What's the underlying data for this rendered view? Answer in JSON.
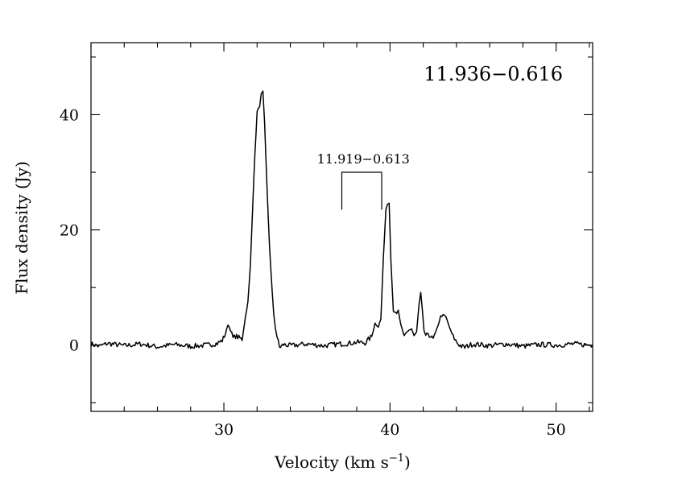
{
  "chart_data": {
    "type": "line",
    "title": "11.936−0.616",
    "xlabel": "Velocity (km s",
    "xlabel_sup": "−1",
    "xlabel_close": ")",
    "ylabel": "Flux density (Jy)",
    "xlim": [
      22,
      52.2
    ],
    "ylim": [
      -11.5,
      52.5
    ],
    "x_ticks": [
      {
        "value": 30,
        "label": "30"
      },
      {
        "value": 40,
        "label": "40"
      },
      {
        "value": 50,
        "label": "50"
      }
    ],
    "y_ticks": [
      {
        "value": 0,
        "label": "0"
      },
      {
        "value": 20,
        "label": "20"
      },
      {
        "value": 40,
        "label": "40"
      }
    ],
    "x_minor_step": 2,
    "y_minor_step": 10,
    "annotations": [
      {
        "label": "11.919−0.613",
        "bracket_x": [
          37.1,
          39.5
        ],
        "bracket_y_top": 30.0,
        "bracket_y_bottom": 26.8
      }
    ],
    "series": [
      {
        "x": [
          22.0,
          22.5,
          23.0,
          24.0,
          25.0,
          26.0,
          27.0,
          28.0,
          29.0,
          29.6,
          29.9,
          30.1,
          30.25,
          30.4,
          30.55,
          30.7,
          30.9,
          31.1,
          31.3,
          31.45,
          31.6,
          31.8,
          32.0,
          32.15,
          32.25,
          32.35,
          32.45,
          32.6,
          32.75,
          32.9,
          33.0,
          33.1,
          33.2,
          33.35,
          33.6,
          34.0,
          35.0,
          36.0,
          37.0,
          37.5,
          38.0,
          38.5,
          38.9,
          39.1,
          39.3,
          39.45,
          39.6,
          39.75,
          39.85,
          39.95,
          40.05,
          40.2,
          40.4,
          40.5,
          40.65,
          40.85,
          41.0,
          41.15,
          41.3,
          41.45,
          41.6,
          41.75,
          41.85,
          41.95,
          42.05,
          42.15,
          42.3,
          42.45,
          42.6,
          42.75,
          42.9,
          43.05,
          43.2,
          43.35,
          43.5,
          43.65,
          43.8,
          43.95,
          44.1,
          44.3,
          44.5,
          44.7,
          45.0,
          46.0,
          47.0,
          48.0,
          49.0,
          50.0,
          51.0,
          52.2
        ],
        "y": [
          0.2,
          -0.2,
          0.3,
          -0.1,
          0.2,
          -0.3,
          0.1,
          -0.2,
          0.0,
          0.3,
          0.8,
          2.0,
          3.6,
          2.6,
          1.2,
          1.6,
          1.3,
          1.0,
          5.0,
          7.5,
          14.0,
          29.0,
          40.5,
          41.5,
          43.5,
          44.0,
          38.5,
          27.0,
          17.0,
          9.5,
          5.5,
          3.0,
          1.5,
          -0.4,
          0.1,
          -0.1,
          0.2,
          -0.1,
          0.2,
          0.3,
          0.5,
          0.4,
          1.5,
          3.8,
          3.2,
          4.5,
          15.0,
          23.5,
          24.5,
          24.8,
          15.0,
          6.0,
          5.4,
          6.0,
          3.5,
          1.5,
          2.3,
          2.6,
          2.8,
          1.5,
          2.2,
          7.0,
          9.0,
          6.0,
          2.5,
          1.3,
          2.0,
          1.5,
          1.0,
          2.2,
          3.5,
          5.0,
          5.2,
          5.0,
          3.8,
          2.5,
          1.5,
          0.8,
          0.2,
          -0.2,
          -0.4,
          -0.1,
          0.2,
          -0.1,
          0.2,
          -0.2,
          0.1,
          0.0,
          0.2,
          0.0
        ]
      }
    ]
  }
}
